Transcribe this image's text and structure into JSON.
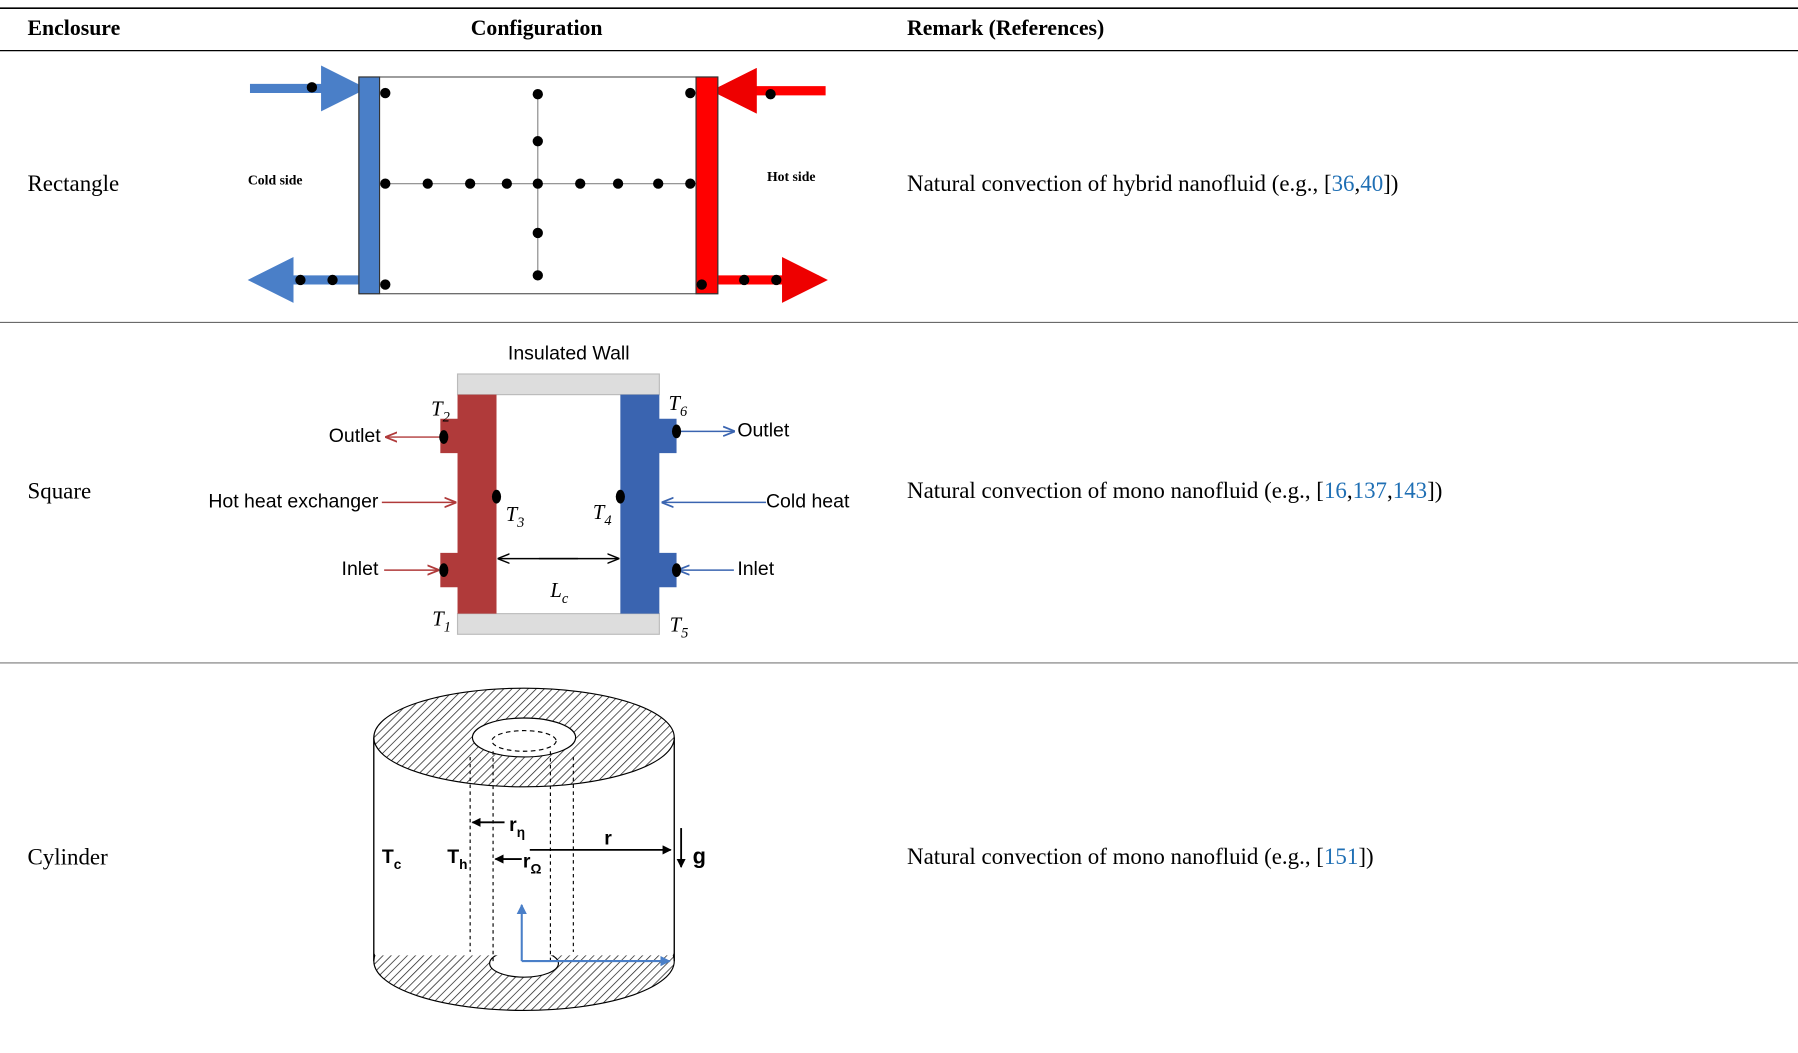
{
  "table": {
    "headers": [
      "Enclosure",
      "Configuration",
      "Remark (References)"
    ],
    "rows": [
      {
        "enclosure": "Rectangle",
        "configuration": {
          "cold": "Cold side",
          "hot": "Hot side"
        },
        "remark": {
          "prefix": "Natural convection of hybrid nanofluid (e.g., [",
          "refs": [
            "36",
            "40"
          ],
          "separator": ",",
          "suffix": "])"
        }
      },
      {
        "enclosure": "Square",
        "configuration": {
          "wall": "Insulated Wall",
          "outlet_left": "Outlet",
          "outlet_right": "Outlet",
          "hot": "Hot heat exchanger",
          "cold": "Cold heat",
          "inlet_left": "Inlet",
          "inlet_right": "Inlet",
          "t2": {
            "symbol": "T",
            "subscript": "2"
          },
          "t6": {
            "symbol": "T",
            "subscript": "6"
          },
          "t3": {
            "symbol": "T",
            "subscript": "3"
          },
          "t4": {
            "symbol": "T",
            "subscript": "4"
          },
          "lc": {
            "symbol": "L",
            "subscript": "c"
          },
          "t1": {
            "symbol": "T",
            "subscript": "1"
          },
          "t5": {
            "symbol": "T",
            "subscript": "5"
          }
        },
        "remark": {
          "prefix": "Natural convection of mono nanofluid (e.g., [",
          "refs": [
            "16",
            "137",
            "143"
          ],
          "separator": ",",
          "suffix": "])"
        }
      },
      {
        "enclosure": "Cylinder",
        "configuration": {
          "tc": {
            "symbol": "T",
            "subscript": "c"
          },
          "th": {
            "symbol": "T",
            "subscript": "h"
          },
          "r_eta": {
            "symbol": "r",
            "subscript": "η"
          },
          "r_omega": {
            "symbol": "r",
            "subscript": "Ω"
          },
          "r": "r",
          "g": "g"
        },
        "remark": {
          "prefix": "Natural convection of mono nanofluid (e.g., [",
          "refs": [
            "151"
          ],
          "separator": ",",
          "suffix": "])"
        }
      }
    ]
  }
}
